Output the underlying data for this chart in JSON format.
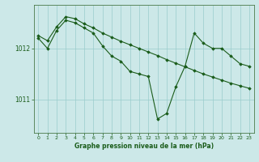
{
  "background_color": "#cce8e8",
  "plot_bg_color": "#cce8e8",
  "line_color": "#1a5c1a",
  "marker_color": "#1a5c1a",
  "grid_color": "#99cccc",
  "axis_color": "#4a7a4a",
  "tick_label_color": "#1a5c1a",
  "title": "Graphe pression niveau de la mer (hPa)",
  "title_color": "#1a5c1a",
  "ylabel_ticks": [
    1011,
    1012
  ],
  "xlim": [
    -0.5,
    23.5
  ],
  "ylim": [
    1010.35,
    1012.85
  ],
  "line1_x": [
    0,
    1,
    2,
    3,
    4,
    5,
    6,
    7,
    8,
    9,
    10,
    11,
    12,
    13,
    14,
    15,
    16,
    17,
    18,
    19,
    20,
    21,
    22,
    23
  ],
  "line1_y": [
    1012.2,
    1012.0,
    1012.35,
    1012.55,
    1012.5,
    1012.4,
    1012.3,
    1012.05,
    1011.85,
    1011.75,
    1011.55,
    1011.5,
    1011.45,
    1010.62,
    1010.73,
    1011.25,
    1011.65,
    1012.3,
    1012.1,
    1012.0,
    1012.0,
    1011.85,
    1011.7,
    1011.65
  ],
  "line2_x": [
    0,
    1,
    2,
    3,
    4,
    5,
    6,
    7,
    8,
    9,
    10,
    11,
    12,
    13,
    14,
    15,
    16,
    17,
    18,
    19,
    20,
    21,
    22,
    23
  ],
  "line2_y": [
    1012.25,
    1012.15,
    1012.42,
    1012.62,
    1012.58,
    1012.48,
    1012.4,
    1012.3,
    1012.22,
    1012.14,
    1012.07,
    1012.0,
    1011.93,
    1011.86,
    1011.78,
    1011.71,
    1011.64,
    1011.57,
    1011.5,
    1011.44,
    1011.38,
    1011.32,
    1011.27,
    1011.22
  ]
}
